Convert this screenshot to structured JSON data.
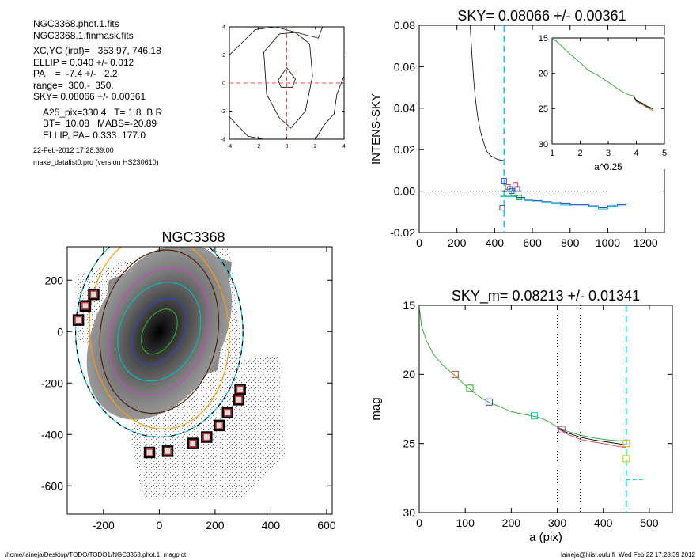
{
  "info": {
    "lines": [
      "NGC3368.phot.1.fits",
      "NGC3368.1.finmask.fits",
      "XC,YC (iraf)=   353.97, 746.18",
      "ELLIP = 0.340 +/- 0.012",
      "PA    =  -7.4 +/-   2.2",
      "range=  300.-  350.",
      "SKY= 0.08066 +/- 0.00361",
      "A25_pix=330.4   T= 1.8  B R",
      "BT=  10.08   MABS=-20.89",
      "ELLIP, PA= 0.333  177.0",
      "22-Feb-2012 17:28:39.00",
      "make_datalist0.pro (version HS230610)"
    ]
  },
  "footer": {
    "left": "/home/laineja/Desktop/TODO/TODO1/NGC3368.phot.1_magplot",
    "right": "laineja@hiisi.oulu.fi  Wed Feb 22 17:28:39 2012"
  },
  "chart_data": [
    {
      "id": "contour",
      "type": "line",
      "title": "",
      "xlim": [
        -4,
        4
      ],
      "ylim": [
        -4,
        4
      ],
      "xticks": [
        "-4",
        "-2",
        "0",
        "2",
        "4"
      ],
      "yticks": [
        "-4",
        "-2",
        "0",
        "2",
        "4"
      ],
      "series": [
        {
          "color": "#000000",
          "x": [
            -1.6,
            -0.5,
            0.6,
            1.6,
            1.8,
            1.3,
            0.3,
            -0.5,
            -1.4,
            -1.6
          ],
          "y": [
            2.2,
            3.5,
            3.6,
            2.8,
            0.5,
            -2.0,
            -3.2,
            -2.5,
            -0.8,
            2.2
          ]
        },
        {
          "color": "#000000",
          "x": [
            -0.6,
            0.0,
            0.6,
            0.4,
            -0.4,
            -0.6
          ],
          "y": [
            0.2,
            1.1,
            0.3,
            -0.3,
            -0.3,
            0.2
          ]
        },
        {
          "color": "#000000",
          "x": [
            -4.0,
            -2.2,
            -0.8,
            2.2,
            2.5
          ],
          "y": [
            2.0,
            3.8,
            4.0,
            3.2,
            4.0
          ]
        },
        {
          "color": "#000000",
          "x": [
            -4.0,
            -2.7,
            -1.6
          ],
          "y": [
            -2.4,
            -3.8,
            -4.0
          ]
        },
        {
          "color": "#000000",
          "x": [
            2.0,
            2.6,
            3.3,
            3.5,
            4.0
          ],
          "y": [
            -4.0,
            -3.0,
            -2.2,
            -0.8,
            0.5
          ]
        }
      ],
      "cross": {
        "x": 0,
        "y": 0,
        "color": "#ff4444"
      }
    },
    {
      "id": "sky",
      "type": "line",
      "title": "SKY= 0.08066 +/- 0.00361",
      "xlabel": "",
      "ylabel": "INTENS-SKY",
      "xlim": [
        0,
        1300
      ],
      "ylim": [
        -0.02,
        0.08
      ],
      "xticks": [
        "0",
        "200",
        "400",
        "600",
        "800",
        "1000",
        "1200"
      ],
      "yticks": [
        "-0.02",
        "0.00",
        "0.02",
        "0.04",
        "0.06",
        "0.08"
      ],
      "profile": {
        "x": [
          270,
          280,
          290,
          300,
          310,
          320,
          330,
          340,
          350,
          360,
          370,
          380,
          390,
          400,
          410,
          420,
          430,
          440,
          450
        ],
        "y": [
          0.08,
          0.065,
          0.052,
          0.043,
          0.036,
          0.031,
          0.027,
          0.024,
          0.021,
          0.019,
          0.018,
          0.017,
          0.0165,
          0.016,
          0.0155,
          0.0152,
          0.015,
          0.0148,
          0.0146
        ]
      },
      "zero_line": {
        "x": [
          0,
          1000
        ],
        "y": 0
      },
      "sky_step": {
        "x": [
          430,
          520,
          560,
          600,
          650,
          700,
          750,
          800,
          850,
          900,
          950,
          1000,
          1050,
          1100
        ],
        "y": [
          -0.002,
          -0.003,
          -0.004,
          -0.0045,
          -0.005,
          -0.0055,
          -0.006,
          -0.0065,
          -0.0065,
          -0.007,
          -0.008,
          -0.007,
          -0.0065,
          -0.0065
        ]
      },
      "vline": {
        "x": 450,
        "color": "#00ccff"
      },
      "squares": [
        {
          "x": 450,
          "y": 0.005,
          "color": "#4444ff"
        },
        {
          "x": 470,
          "y": 0.002,
          "color": "#cc4444"
        },
        {
          "x": 480,
          "y": 0.001,
          "color": "#00aaaa"
        },
        {
          "x": 490,
          "y": 0.0,
          "color": "#4444ff"
        },
        {
          "x": 500,
          "y": -0.001,
          "color": "#22aa22"
        },
        {
          "x": 510,
          "y": 0.003,
          "color": "#cc4444"
        },
        {
          "x": 520,
          "y": 0.001,
          "color": "#4444ff"
        },
        {
          "x": 530,
          "y": -0.003,
          "color": "#22aa22"
        },
        {
          "x": 440,
          "y": -0.008,
          "color": "#4444ff"
        }
      ]
    },
    {
      "id": "inset",
      "type": "line",
      "title": "",
      "xlabel": "a^0.25",
      "ylabel": "",
      "xlim": [
        1,
        5
      ],
      "ylim": [
        30,
        15
      ],
      "xticks": [
        "1",
        "2",
        "3",
        "4",
        "5"
      ],
      "yticks": [
        "15",
        "20",
        "25",
        "30"
      ],
      "series": [
        {
          "name": "",
          "color": "#22aa22",
          "x": [
            1.0,
            1.2,
            1.5,
            1.8,
            2.0,
            2.3,
            2.6,
            2.9,
            3.1,
            3.3,
            3.5,
            3.7,
            3.9,
            4.0,
            4.2,
            4.4,
            4.6
          ],
          "y": [
            15.0,
            15.6,
            16.8,
            17.8,
            18.5,
            19.6,
            20.2,
            21.0,
            21.5,
            22.1,
            22.6,
            23.0,
            23.2,
            23.8,
            24.3,
            24.8,
            25.1
          ]
        },
        {
          "name": "",
          "color": "#cc4444",
          "x": [
            3.9,
            4.0,
            4.2,
            4.4,
            4.6
          ],
          "y": [
            23.3,
            24.0,
            24.4,
            24.9,
            25.3
          ]
        },
        {
          "name": "",
          "color": "#000000",
          "x": [
            3.9,
            4.0,
            4.2,
            4.4,
            4.6
          ],
          "y": [
            23.2,
            23.9,
            24.2,
            24.7,
            25.0
          ]
        }
      ]
    },
    {
      "id": "image",
      "type": "scatter",
      "title": "NGC3368",
      "xlim": [
        -330,
        620
      ],
      "ylim": [
        -710,
        330
      ],
      "xticks": [
        "-200",
        "0",
        "200",
        "400",
        "600"
      ],
      "yticks": [
        "-600",
        "-400",
        "-200",
        "0",
        "200"
      ],
      "center": {
        "x": 0,
        "y": 0
      },
      "ellipses": [
        {
          "a": 95,
          "b": 55,
          "pa": 30,
          "color": "#22aa22"
        },
        {
          "a": 140,
          "b": 85,
          "pa": 30,
          "color": "#3344cc"
        },
        {
          "a": 200,
          "b": 140,
          "pa": 25,
          "color": "#00bbbb"
        },
        {
          "a": 255,
          "b": 170,
          "pa": 20,
          "color": "#cc44cc"
        },
        {
          "a": 320,
          "b": 210,
          "pa": 10,
          "color": "#552200"
        },
        {
          "a": 410,
          "b": 300,
          "pa": 0,
          "color": "#00ccff"
        },
        {
          "a": 410,
          "b": 300,
          "pa": 0,
          "color": "#000000"
        },
        {
          "a": 380,
          "b": 250,
          "pa": -5,
          "color": "#ff9900"
        }
      ],
      "boxes": [
        {
          "x": -235,
          "y": 145
        },
        {
          "x": -265,
          "y": 100
        },
        {
          "x": -290,
          "y": 45
        },
        {
          "x": 290,
          "y": -225
        },
        {
          "x": 285,
          "y": -265
        },
        {
          "x": 245,
          "y": -315
        },
        {
          "x": 215,
          "y": -365
        },
        {
          "x": 170,
          "y": -410
        },
        {
          "x": 120,
          "y": -435
        },
        {
          "x": 30,
          "y": -465
        },
        {
          "x": -35,
          "y": -470
        }
      ]
    },
    {
      "id": "mag",
      "type": "line",
      "title": "SKY_m=  0.08213 +/- 0.01341",
      "xlabel": "a (pix)",
      "ylabel": "mag",
      "xlim": [
        0,
        550
      ],
      "ylim": [
        30,
        15
      ],
      "xticks": [
        "0",
        "100",
        "200",
        "300",
        "400",
        "500"
      ],
      "yticks": [
        "15",
        "20",
        "25",
        "30"
      ],
      "series": [
        {
          "name": "",
          "color": "#22aa22",
          "x": [
            0,
            5,
            15,
            30,
            50,
            75,
            100,
            130,
            150,
            180,
            200,
            230,
            260,
            280,
            300,
            320,
            350,
            380,
            400,
            430,
            450
          ],
          "y": [
            15.0,
            16.5,
            17.5,
            18.5,
            19.3,
            20.0,
            20.8,
            21.6,
            22.0,
            22.4,
            22.7,
            22.9,
            23.1,
            23.4,
            23.8,
            24.1,
            24.4,
            24.6,
            24.7,
            24.8,
            24.8
          ]
        },
        {
          "name": "",
          "color": "#cc4444",
          "x": [
            300,
            320,
            350,
            380,
            400,
            430,
            450
          ],
          "y": [
            23.9,
            24.3,
            24.7,
            24.9,
            25.0,
            25.2,
            25.3
          ]
        },
        {
          "name": "",
          "color": "#000000",
          "x": [
            300,
            320,
            350,
            380,
            400,
            430,
            450
          ],
          "y": [
            23.85,
            24.2,
            24.55,
            24.75,
            24.85,
            25.0,
            25.1
          ]
        }
      ],
      "vlines_dotted": [
        300,
        350
      ],
      "vline": {
        "x": 450,
        "color": "#00ccff"
      },
      "sky_dash": {
        "x": [
          450,
          490
        ],
        "y": 27.6
      },
      "squares": [
        {
          "x": 78,
          "y": 20.0,
          "color": "#cc4444"
        },
        {
          "x": 110,
          "y": 21.0,
          "color": "#22aa22"
        },
        {
          "x": 152,
          "y": 22.0,
          "color": "#3344cc"
        },
        {
          "x": 250,
          "y": 23.0,
          "color": "#00cccc"
        },
        {
          "x": 310,
          "y": 24.0,
          "color": "#cc44cc"
        },
        {
          "x": 450,
          "y": 25.0,
          "color": "#ff9900"
        },
        {
          "x": 450,
          "y": 26.1,
          "color": "#cccc00"
        }
      ]
    }
  ]
}
